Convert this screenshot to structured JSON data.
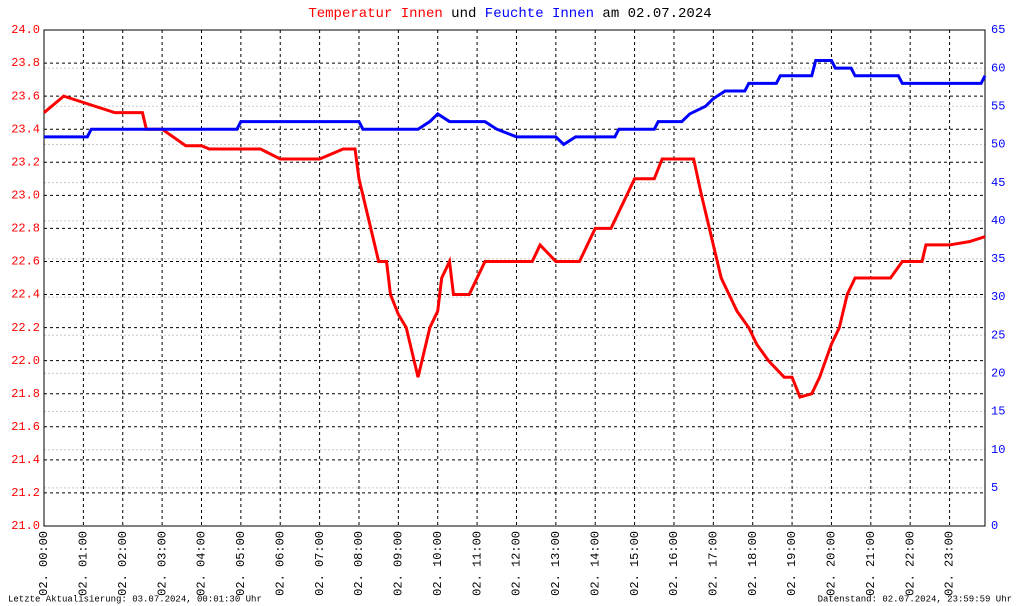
{
  "chart_data": {
    "type": "line",
    "title_connector": "und",
    "title_suffix": "am 02.07.2024",
    "footer_left": "Letzte Aktualisierung: 03.07.2024, 00:01:30 Uhr",
    "footer_right": "Datenstand: 02.07.2024, 23:59:59 Uhr",
    "grid": true,
    "xlim": [
      0,
      23.9
    ],
    "xticks": [
      {
        "value": 0,
        "label": "02. 00:00"
      },
      {
        "value": 1,
        "label": "02. 01:00"
      },
      {
        "value": 2,
        "label": "02. 02:00"
      },
      {
        "value": 3,
        "label": "02. 03:00"
      },
      {
        "value": 4,
        "label": "02. 04:00"
      },
      {
        "value": 5,
        "label": "02. 05:00"
      },
      {
        "value": 6,
        "label": "02. 06:00"
      },
      {
        "value": 7,
        "label": "02. 07:00"
      },
      {
        "value": 8,
        "label": "02. 08:00"
      },
      {
        "value": 9,
        "label": "02. 09:00"
      },
      {
        "value": 10,
        "label": "02. 10:00"
      },
      {
        "value": 11,
        "label": "02. 11:00"
      },
      {
        "value": 12,
        "label": "02. 12:00"
      },
      {
        "value": 13,
        "label": "02. 13:00"
      },
      {
        "value": 14,
        "label": "02. 14:00"
      },
      {
        "value": 15,
        "label": "02. 15:00"
      },
      {
        "value": 16,
        "label": "02. 16:00"
      },
      {
        "value": 17,
        "label": "02. 17:00"
      },
      {
        "value": 18,
        "label": "02. 18:00"
      },
      {
        "value": 19,
        "label": "02. 19:00"
      },
      {
        "value": 20,
        "label": "02. 20:00"
      },
      {
        "value": 21,
        "label": "02. 21:00"
      },
      {
        "value": 22,
        "label": "02. 22:00"
      },
      {
        "value": 23,
        "label": "02. 23:00"
      }
    ],
    "ylim": [
      21,
      24
    ],
    "yticks": [
      {
        "value": 21,
        "label": "21.0"
      },
      21.2,
      21.4,
      21.6,
      21.8,
      {
        "value": 22,
        "label": "22.0"
      },
      22.2,
      22.4,
      22.6,
      22.8,
      {
        "value": 23,
        "label": "23.0"
      },
      23.2,
      23.4,
      23.6,
      23.8,
      {
        "value": 24,
        "label": "24.0"
      }
    ],
    "y2lim": [
      0,
      65
    ],
    "y2ticks": [
      0,
      5,
      10,
      15,
      20,
      25,
      30,
      35,
      40,
      45,
      50,
      55,
      60,
      65
    ],
    "y_color": "#ff0000",
    "y2_color": "#0000ff",
    "series": [
      {
        "name": "Temperatur Innen",
        "color": "#ff0000",
        "x": [
          0,
          0.5,
          1.8,
          2.5,
          2.6,
          3.0,
          3.6,
          4.0,
          4.2,
          5.5,
          6.0,
          7.0,
          7.6,
          7.9,
          8.0,
          8.3,
          8.5,
          8.7,
          8.8,
          9.0,
          9.2,
          9.4,
          9.5,
          9.6,
          9.8,
          10.0,
          10.1,
          10.3,
          10.4,
          10.8,
          11.0,
          11.2,
          12.0,
          12.4,
          12.6,
          13.0,
          13.6,
          13.8,
          14.0,
          14.4,
          14.6,
          14.8,
          15.0,
          15.5,
          15.7,
          16.5,
          16.7,
          16.9,
          17.0,
          17.2,
          17.4,
          17.6,
          17.9,
          18.1,
          18.4,
          18.8,
          19.0,
          19.2,
          19.5,
          19.7,
          20.0,
          20.2,
          20.4,
          20.6,
          21.0,
          21.5,
          21.8,
          22.3,
          22.4,
          23.0,
          23.5,
          23.9
        ],
        "values": [
          23.5,
          23.6,
          23.5,
          23.5,
          23.4,
          23.4,
          23.3,
          23.3,
          23.28,
          23.28,
          23.22,
          23.22,
          23.28,
          23.28,
          23.1,
          22.8,
          22.6,
          22.6,
          22.4,
          22.28,
          22.2,
          22.0,
          21.9,
          22.0,
          22.2,
          22.3,
          22.5,
          22.6,
          22.4,
          22.4,
          22.5,
          22.6,
          22.6,
          22.6,
          22.7,
          22.6,
          22.6,
          22.7,
          22.8,
          22.8,
          22.9,
          23.0,
          23.1,
          23.1,
          23.22,
          23.22,
          23.0,
          22.8,
          22.7,
          22.5,
          22.4,
          22.3,
          22.2,
          22.1,
          22.0,
          21.9,
          21.9,
          21.78,
          21.8,
          21.9,
          22.1,
          22.2,
          22.4,
          22.5,
          22.5,
          22.5,
          22.6,
          22.6,
          22.7,
          22.7,
          22.72,
          22.75
        ]
      },
      {
        "name": "Feuchte Innen",
        "color": "#0000ff",
        "axis": "y2",
        "x": [
          0,
          1.1,
          1.2,
          4.9,
          5.0,
          8.0,
          8.1,
          9.5,
          9.8,
          10.0,
          10.3,
          10.8,
          11.2,
          11.5,
          12.0,
          13.0,
          13.2,
          13.5,
          14.5,
          14.6,
          15.5,
          15.6,
          16.2,
          16.4,
          16.8,
          17.0,
          17.3,
          17.8,
          17.9,
          18.6,
          18.7,
          19.5,
          19.6,
          20.0,
          20.1,
          20.5,
          20.6,
          21.7,
          21.8,
          23.8,
          23.9
        ],
        "values": [
          51,
          51,
          52,
          52,
          53,
          53,
          52,
          52,
          53,
          54,
          53,
          53,
          53,
          52,
          51,
          51,
          50,
          51,
          51,
          52,
          52,
          53,
          53,
          54,
          55,
          56,
          57,
          57,
          58,
          58,
          59,
          59,
          61,
          61,
          60,
          60,
          59,
          59,
          58,
          58,
          59
        ]
      }
    ]
  }
}
